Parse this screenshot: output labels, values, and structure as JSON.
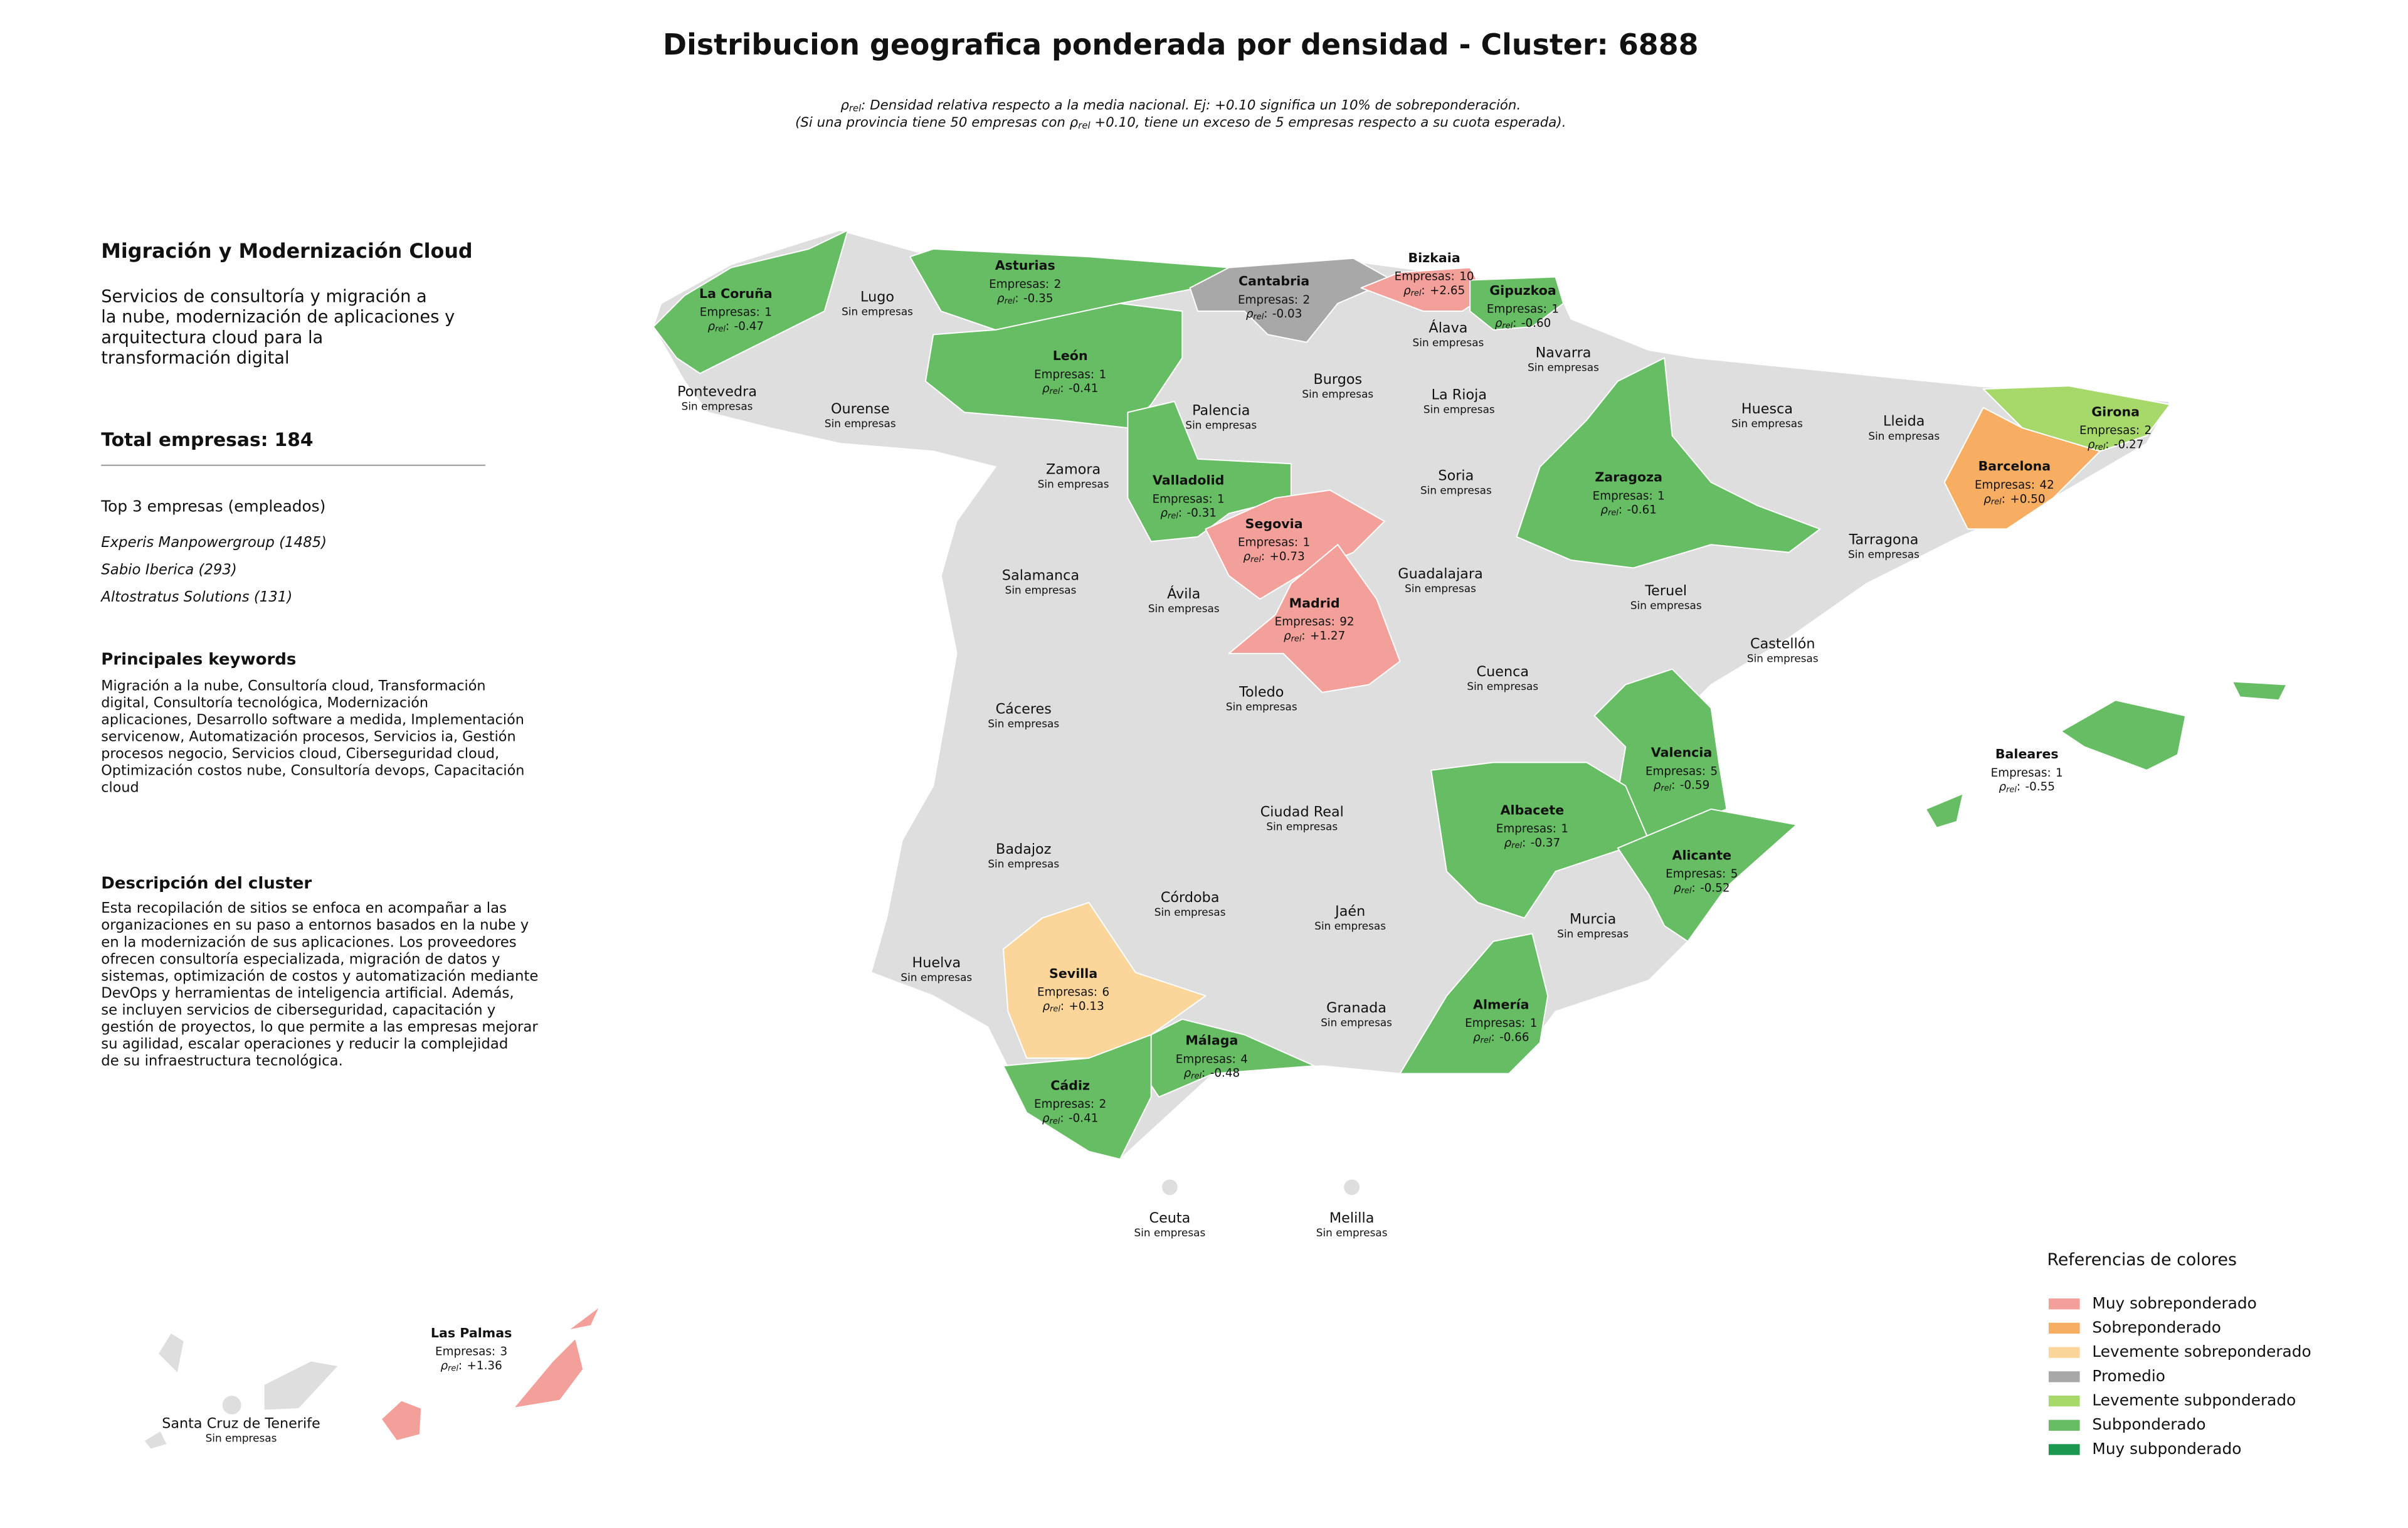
{
  "title": "Distribucion geografica ponderada por densidad - Cluster: 6888",
  "subtitle": {
    "line1": {
      "symbol": "ρ",
      "sub": "rel",
      "text": ": Densidad relativa respecto a la media nacional. Ej: +0.10 significa un 10% de sobreponderación."
    },
    "line2": {
      "before": "(Si una provincia tiene 50 empresas con ",
      "symbol": "ρ",
      "sub": "rel",
      "after": " +0.10, tiene un exceso de 5 empresas respecto a su cuota esperada)."
    }
  },
  "panel": {
    "heading": "Migración y Modernización Cloud",
    "description_lines": [
      "Servicios de consultoría y migración a",
      "la nube, modernización de aplicaciones y",
      "arquitectura cloud para la",
      "transformación digital"
    ],
    "total_label": "Total empresas:",
    "total": 184,
    "top_heading": "Top 3 empresas (empleados)",
    "top_companies": [
      "Experis Manpowergroup (1485)",
      "Sabio Iberica (293)",
      "Altostratus Solutions (131)"
    ],
    "keywords_heading": "Principales keywords",
    "keywords_lines": [
      "Migración a la nube, Consultoría cloud, Transformación",
      "digital, Consultoría tecnológica, Modernización",
      "aplicaciones, Desarrollo software a medida, Implementación",
      "servicenow, Automatización procesos, Servicios ia, Gestión",
      "procesos negocio, Servicios cloud, Ciberseguridad cloud,",
      "Optimización costos nube, Consultoría devops, Capacitación",
      "cloud"
    ],
    "cluster_heading": "Descripción del cluster",
    "cluster_lines": [
      "Esta recopilación de sitios se enfoca en acompañar a las",
      "organizaciones en su paso a entornos basados en la nube y",
      "en la modernización de sus aplicaciones. Los proveedores",
      "ofrecen consultoría especializada, migración de datos y",
      "sistemas, optimización de costos y automatización mediante",
      "DevOps y herramientas de inteligencia artificial. Además,",
      "se incluyen servicios de ciberseguridad, capacitación y",
      "gestión de proyectos, lo que permite a las empresas mejorar",
      "su agilidad, escalar operaciones y reducir la complejidad",
      "de su infraestructura tecnológica."
    ]
  },
  "labels": {
    "companies": "Empresas:",
    "rho_symbol": "ρ",
    "rho_sub": "rel",
    "rho_colon": ":",
    "none": "Sin empresas"
  },
  "provinces": [
    {
      "name": "La Coruña",
      "companies": 1,
      "rho": -0.47,
      "color": "#66bd63"
    },
    {
      "name": "Lugo"
    },
    {
      "name": "Asturias",
      "companies": 2,
      "rho": -0.35,
      "color": "#66bd63"
    },
    {
      "name": "Cantabria",
      "companies": 2,
      "rho": -0.03,
      "color": "#a8a8a8"
    },
    {
      "name": "Bizkaia",
      "companies": 10,
      "rho": 2.65,
      "rho_label": "+2.65",
      "color": "#f4a09a"
    },
    {
      "name": "Gipuzkoa",
      "companies": 1,
      "rho": -0.6,
      "rho_label": "-0.60",
      "color": "#66bd63"
    },
    {
      "name": "Álava"
    },
    {
      "name": "Navarra"
    },
    {
      "name": "León",
      "companies": 1,
      "rho": -0.41,
      "color": "#66bd63"
    },
    {
      "name": "Pontevedra"
    },
    {
      "name": "Ourense"
    },
    {
      "name": "Palencia"
    },
    {
      "name": "Burgos"
    },
    {
      "name": "La Rioja"
    },
    {
      "name": "Huesca"
    },
    {
      "name": "Lleida"
    },
    {
      "name": "Girona",
      "companies": 2,
      "rho": -0.27,
      "color": "#a6d96a"
    },
    {
      "name": "Barcelona",
      "companies": 42,
      "rho": 0.5,
      "rho_label": "+0.50",
      "color": "#f7ad62"
    },
    {
      "name": "Zamora"
    },
    {
      "name": "Valladolid",
      "companies": 1,
      "rho": -0.31,
      "color": "#66bd63"
    },
    {
      "name": "Soria"
    },
    {
      "name": "Zaragoza",
      "companies": 1,
      "rho": -0.61,
      "color": "#66bd63"
    },
    {
      "name": "Segovia",
      "companies": 1,
      "rho": 0.73,
      "rho_label": "+0.73",
      "color": "#f4a09a"
    },
    {
      "name": "Tarragona"
    },
    {
      "name": "Salamanca"
    },
    {
      "name": "Ávila"
    },
    {
      "name": "Guadalajara"
    },
    {
      "name": "Teruel"
    },
    {
      "name": "Madrid",
      "companies": 92,
      "rho": 1.27,
      "rho_label": "+1.27",
      "color": "#f4a09a"
    },
    {
      "name": "Castellón"
    },
    {
      "name": "Cáceres"
    },
    {
      "name": "Toledo"
    },
    {
      "name": "Cuenca"
    },
    {
      "name": "Valencia",
      "companies": 5,
      "rho": -0.59,
      "color": "#66bd63"
    },
    {
      "name": "Baleares",
      "companies": 1,
      "rho": -0.55,
      "color": "#66bd63"
    },
    {
      "name": "Ciudad Real"
    },
    {
      "name": "Albacete",
      "companies": 1,
      "rho": -0.37,
      "color": "#66bd63"
    },
    {
      "name": "Badajoz"
    },
    {
      "name": "Alicante",
      "companies": 5,
      "rho": -0.52,
      "color": "#66bd63"
    },
    {
      "name": "Córdoba"
    },
    {
      "name": "Jaén"
    },
    {
      "name": "Murcia"
    },
    {
      "name": "Huelva"
    },
    {
      "name": "Sevilla",
      "companies": 6,
      "rho": 0.13,
      "rho_label": "+0.13",
      "color": "#fcd59a"
    },
    {
      "name": "Granada"
    },
    {
      "name": "Almería",
      "companies": 1,
      "rho": -0.66,
      "color": "#66bd63"
    },
    {
      "name": "Málaga",
      "companies": 4,
      "rho": -0.48,
      "color": "#66bd63"
    },
    {
      "name": "Cádiz",
      "companies": 2,
      "rho": -0.41,
      "color": "#66bd63"
    },
    {
      "name": "Ceuta"
    },
    {
      "name": "Melilla"
    },
    {
      "name": "Las Palmas",
      "companies": 3,
      "rho": 1.36,
      "rho_label": "+1.36",
      "color": "#f4a09a"
    },
    {
      "name": "Santa Cruz de Tenerife"
    }
  ],
  "legend": {
    "title": "Referencias de colores",
    "items": [
      {
        "name": "Muy sobreponderado",
        "color": "#f4a09a"
      },
      {
        "name": "Sobreponderado",
        "color": "#f7ad62"
      },
      {
        "name": "Levemente sobreponderado",
        "color": "#fcd59a"
      },
      {
        "name": "Promedio",
        "color": "#a8a8a8"
      },
      {
        "name": "Levemente subponderado",
        "color": "#a6d96a"
      },
      {
        "name": "Subponderado",
        "color": "#66bd63"
      },
      {
        "name": "Muy subponderado",
        "color": "#1a9850"
      }
    ]
  }
}
